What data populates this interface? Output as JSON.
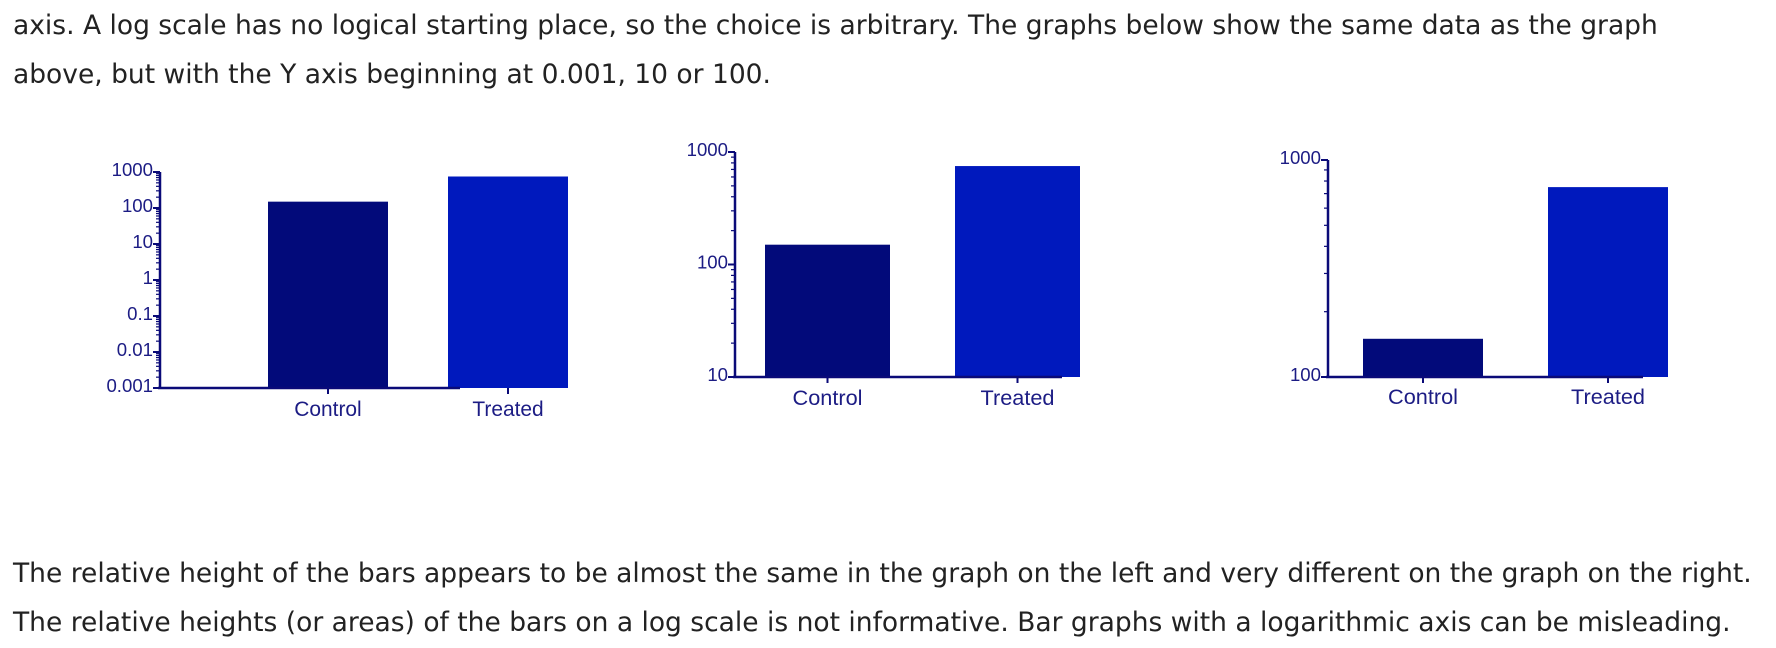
{
  "text": {
    "intro_lines": [
      "axis. A log scale has no logical starting place, so the choice is arbitrary. The graphs below show the same data as the graph",
      "above, but with the Y axis beginning at 0.001, 10 or 100."
    ],
    "outro_lines": [
      "The relative height of the bars appears to be almost the same in the graph on the left and very different on the graph on the right.",
      "The relative heights (or areas) of the bars on a log scale is not informative. Bar graphs with a logarithmic axis can be misleading."
    ]
  },
  "colors": {
    "control_bar": "#020a7a",
    "treated_bar": "#0019bd",
    "axis": "#0a0a78",
    "tick_label": "#1c1c84",
    "body_text": "#222222"
  },
  "chart_data": [
    {
      "type": "bar",
      "scale": "log",
      "categories": [
        "Control",
        "Treated"
      ],
      "values": [
        150,
        750
      ],
      "ylim": [
        0.001,
        1000
      ],
      "yticks": [
        0.001,
        0.01,
        0.1,
        1,
        10,
        100,
        1000
      ],
      "ytick_labels": [
        "0.001",
        "0.01",
        "0.1",
        "1",
        "10",
        "100",
        "1000"
      ],
      "minor_ticks": true
    },
    {
      "type": "bar",
      "scale": "log",
      "categories": [
        "Control",
        "Treated"
      ],
      "values": [
        150,
        750
      ],
      "ylim": [
        10,
        1000
      ],
      "yticks": [
        10,
        100,
        1000
      ],
      "ytick_labels": [
        "10",
        "100",
        "1000"
      ],
      "minor_ticks": true
    },
    {
      "type": "bar",
      "scale": "log",
      "categories": [
        "Control",
        "Treated"
      ],
      "values": [
        150,
        750
      ],
      "ylim": [
        100,
        1000
      ],
      "yticks": [
        100,
        1000
      ],
      "ytick_labels": [
        "100",
        "1000"
      ],
      "minor_ticks": true
    }
  ]
}
